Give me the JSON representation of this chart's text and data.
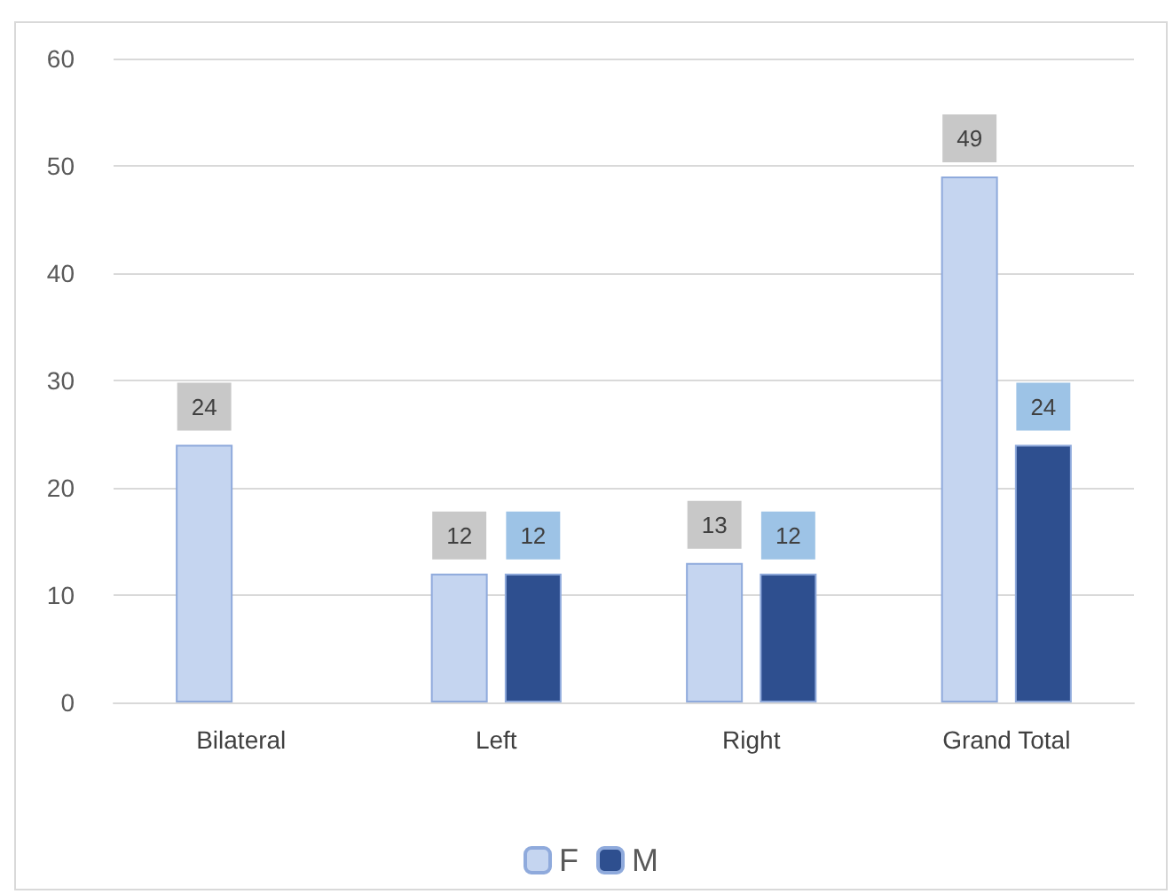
{
  "chart_data": {
    "type": "bar",
    "categories": [
      "Bilateral",
      "Left",
      "Right",
      "Grand Total"
    ],
    "series": [
      {
        "name": "F",
        "color": "#c5d5f0",
        "values": [
          24,
          12,
          13,
          49
        ]
      },
      {
        "name": "M",
        "color": "#2e4f8f",
        "values": [
          null,
          12,
          12,
          24
        ]
      }
    ],
    "ylim": [
      0,
      60
    ],
    "yticks": [
      0,
      10,
      20,
      30,
      40,
      50,
      60
    ],
    "grid": "y",
    "legend": "bottom",
    "data_labels": true
  }
}
